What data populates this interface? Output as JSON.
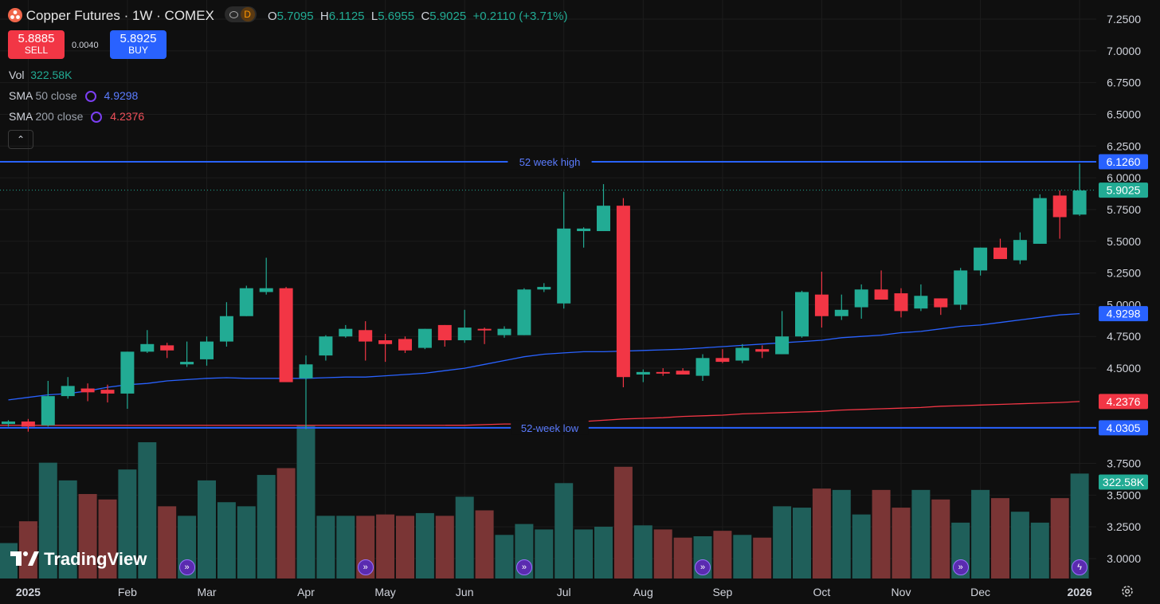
{
  "header": {
    "symbol_title": "Copper Futures · 1W · COMEX",
    "delay_badge": "D",
    "ohlc": {
      "o_label": "O",
      "o": "5.7095",
      "h_label": "H",
      "h": "6.1125",
      "l_label": "L",
      "l": "5.6955",
      "c_label": "C",
      "c": "5.9025",
      "change": "+0.2110 (+3.71%)"
    }
  },
  "trade": {
    "sell_price": "5.8885",
    "sell_label": "SELL",
    "spread": "0.0040",
    "buy_price": "5.8925",
    "buy_label": "BUY"
  },
  "indicators": {
    "vol_label": "Vol",
    "vol_value": "322.58K",
    "sma50_label": "SMA",
    "sma50_params": "50 close",
    "sma50_value": "4.9298",
    "sma200_label": "SMA",
    "sma200_params": "200 close",
    "sma200_value": "4.2376"
  },
  "collapse_icon": "chevron-up-icon",
  "brand": "TradingView",
  "settings_icon": "gear-icon",
  "colors": {
    "up": "#22ab94",
    "down": "#f23645",
    "sma50": "#2962ff",
    "sma200": "#f23645",
    "hl_line": "#2962ff",
    "bg": "#0f0f0f",
    "vol_up": "#1f5f5a",
    "vol_down": "#7a3535"
  },
  "chart_data": {
    "type": "candlestick",
    "interval": "1W",
    "y_axis_ticks": [
      "7.2500",
      "7.0000",
      "6.7500",
      "6.5000",
      "6.2500",
      "6.0000",
      "5.7500",
      "5.5000",
      "5.2500",
      "5.0000",
      "4.7500",
      "4.5000",
      "3.7500",
      "3.5000",
      "3.2500",
      "3.0000"
    ],
    "y_range": [
      2.85,
      7.35
    ],
    "x_axis_labels": [
      "2025",
      "Feb",
      "Mar",
      "Apr",
      "May",
      "Jun",
      "Jul",
      "Aug",
      "Sep",
      "Oct",
      "Nov",
      "Dec",
      "2026"
    ],
    "x_axis_label_week_index": [
      1,
      6,
      10,
      15,
      19,
      23,
      28,
      32,
      36,
      41,
      45,
      49,
      54
    ],
    "candles": [
      {
        "o": 4.06,
        "h": 4.09,
        "l": 4.04,
        "c": 4.08
      },
      {
        "o": 4.08,
        "h": 4.1,
        "l": 4.0,
        "c": 4.04
      },
      {
        "o": 4.05,
        "h": 4.4,
        "l": 4.04,
        "c": 4.28
      },
      {
        "o": 4.28,
        "h": 4.43,
        "l": 4.26,
        "c": 4.36
      },
      {
        "o": 4.34,
        "h": 4.38,
        "l": 4.24,
        "c": 4.31
      },
      {
        "o": 4.33,
        "h": 4.37,
        "l": 4.23,
        "c": 4.3
      },
      {
        "o": 4.3,
        "h": 4.63,
        "l": 4.18,
        "c": 4.63
      },
      {
        "o": 4.63,
        "h": 4.8,
        "l": 4.62,
        "c": 4.69
      },
      {
        "o": 4.68,
        "h": 4.7,
        "l": 4.58,
        "c": 4.64
      },
      {
        "o": 4.53,
        "h": 4.71,
        "l": 4.51,
        "c": 4.55
      },
      {
        "o": 4.57,
        "h": 4.75,
        "l": 4.52,
        "c": 4.71
      },
      {
        "o": 4.71,
        "h": 5.02,
        "l": 4.67,
        "c": 4.91
      },
      {
        "o": 4.91,
        "h": 5.15,
        "l": 4.91,
        "c": 5.13
      },
      {
        "o": 5.1,
        "h": 5.37,
        "l": 5.08,
        "c": 5.13
      },
      {
        "o": 5.13,
        "h": 5.14,
        "l": 4.4,
        "c": 4.39
      },
      {
        "o": 4.42,
        "h": 4.6,
        "l": 4.02,
        "c": 4.53
      },
      {
        "o": 4.6,
        "h": 4.76,
        "l": 4.56,
        "c": 4.75
      },
      {
        "o": 4.75,
        "h": 4.84,
        "l": 4.74,
        "c": 4.81
      },
      {
        "o": 4.8,
        "h": 4.87,
        "l": 4.56,
        "c": 4.71
      },
      {
        "o": 4.72,
        "h": 4.77,
        "l": 4.55,
        "c": 4.69
      },
      {
        "o": 4.73,
        "h": 4.75,
        "l": 4.62,
        "c": 4.64
      },
      {
        "o": 4.66,
        "h": 4.81,
        "l": 4.65,
        "c": 4.81
      },
      {
        "o": 4.84,
        "h": 4.84,
        "l": 4.67,
        "c": 4.72
      },
      {
        "o": 4.72,
        "h": 4.96,
        "l": 4.7,
        "c": 4.82
      },
      {
        "o": 4.81,
        "h": 4.82,
        "l": 4.69,
        "c": 4.8
      },
      {
        "o": 4.76,
        "h": 4.83,
        "l": 4.74,
        "c": 4.81
      },
      {
        "o": 4.76,
        "h": 5.13,
        "l": 4.76,
        "c": 5.12
      },
      {
        "o": 5.12,
        "h": 5.17,
        "l": 5.1,
        "c": 5.14
      },
      {
        "o": 5.01,
        "h": 5.89,
        "l": 4.97,
        "c": 5.6
      },
      {
        "o": 5.58,
        "h": 5.61,
        "l": 5.45,
        "c": 5.6
      },
      {
        "o": 5.58,
        "h": 5.95,
        "l": 5.58,
        "c": 5.78
      },
      {
        "o": 5.78,
        "h": 5.84,
        "l": 4.35,
        "c": 4.43
      },
      {
        "o": 4.45,
        "h": 4.49,
        "l": 4.39,
        "c": 4.47
      },
      {
        "o": 4.47,
        "h": 4.5,
        "l": 4.44,
        "c": 4.46
      },
      {
        "o": 4.48,
        "h": 4.5,
        "l": 4.45,
        "c": 4.45
      },
      {
        "o": 4.44,
        "h": 4.61,
        "l": 4.4,
        "c": 4.58
      },
      {
        "o": 4.58,
        "h": 4.65,
        "l": 4.54,
        "c": 4.55
      },
      {
        "o": 4.56,
        "h": 4.69,
        "l": 4.54,
        "c": 4.66
      },
      {
        "o": 4.65,
        "h": 4.68,
        "l": 4.58,
        "c": 4.63
      },
      {
        "o": 4.61,
        "h": 4.95,
        "l": 4.61,
        "c": 4.75
      },
      {
        "o": 4.75,
        "h": 5.11,
        "l": 4.74,
        "c": 5.1
      },
      {
        "o": 5.08,
        "h": 5.26,
        "l": 4.82,
        "c": 4.91
      },
      {
        "o": 4.91,
        "h": 5.08,
        "l": 4.88,
        "c": 4.96
      },
      {
        "o": 4.98,
        "h": 5.16,
        "l": 4.89,
        "c": 5.12
      },
      {
        "o": 5.12,
        "h": 5.27,
        "l": 5.05,
        "c": 5.04
      },
      {
        "o": 5.09,
        "h": 5.13,
        "l": 4.9,
        "c": 4.95
      },
      {
        "o": 4.97,
        "h": 5.16,
        "l": 4.95,
        "c": 5.07
      },
      {
        "o": 5.05,
        "h": 5.05,
        "l": 4.92,
        "c": 4.98
      },
      {
        "o": 5.0,
        "h": 5.29,
        "l": 4.96,
        "c": 5.27
      },
      {
        "o": 5.27,
        "h": 5.45,
        "l": 5.23,
        "c": 5.45
      },
      {
        "o": 5.45,
        "h": 5.52,
        "l": 5.37,
        "c": 5.36
      },
      {
        "o": 5.35,
        "h": 5.57,
        "l": 5.32,
        "c": 5.51
      },
      {
        "o": 5.48,
        "h": 5.87,
        "l": 5.48,
        "c": 5.84
      },
      {
        "o": 5.86,
        "h": 5.9,
        "l": 5.52,
        "c": 5.69
      },
      {
        "o": 5.71,
        "h": 6.11,
        "l": 5.7,
        "c": 5.9
      }
    ],
    "volume_pct": [
      0.26,
      0.42,
      0.85,
      0.72,
      0.62,
      0.58,
      0.8,
      1.0,
      0.53,
      0.46,
      0.72,
      0.56,
      0.53,
      0.76,
      0.81,
      1.12,
      0.46,
      0.46,
      0.46,
      0.47,
      0.46,
      0.48,
      0.46,
      0.6,
      0.5,
      0.32,
      0.4,
      0.36,
      0.7,
      0.36,
      0.38,
      0.82,
      0.39,
      0.36,
      0.3,
      0.31,
      0.35,
      0.32,
      0.3,
      0.53,
      0.52,
      0.66,
      0.65,
      0.47,
      0.65,
      0.52,
      0.65,
      0.58,
      0.41,
      0.65,
      0.59,
      0.49,
      0.41,
      0.59,
      0.77
    ],
    "sma50": [
      4.25,
      4.27,
      4.29,
      4.3,
      4.32,
      4.35,
      4.37,
      4.38,
      4.4,
      4.41,
      4.42,
      4.425,
      4.42,
      4.42,
      4.42,
      4.42,
      4.425,
      4.43,
      4.43,
      4.44,
      4.45,
      4.46,
      4.48,
      4.5,
      4.53,
      4.56,
      4.59,
      4.61,
      4.62,
      4.63,
      4.63,
      4.635,
      4.64,
      4.645,
      4.65,
      4.66,
      4.67,
      4.68,
      4.69,
      4.7,
      4.71,
      4.72,
      4.74,
      4.75,
      4.76,
      4.78,
      4.79,
      4.81,
      4.83,
      4.84,
      4.86,
      4.88,
      4.9,
      4.92,
      4.93
    ],
    "sma200": [
      4.05,
      4.05,
      4.055,
      4.06,
      4.06,
      4.065,
      4.07,
      4.08,
      4.09,
      4.1,
      4.105,
      4.11,
      4.12,
      4.125,
      4.13,
      4.14,
      4.145,
      4.15,
      4.155,
      4.16,
      4.17,
      4.175,
      4.18,
      4.185,
      4.19,
      4.2,
      4.205,
      4.21,
      4.215,
      4.22,
      4.225,
      4.23,
      4.2376
    ],
    "labels_right": {
      "high52": "6.1260",
      "last": "5.9025",
      "sma50": "4.9298",
      "sma200": "4.2376",
      "low52": "4.0305",
      "vol": "322.58K"
    },
    "high52_value": 6.126,
    "low52_value": 4.0305,
    "high52_label": "52 week high",
    "low52_label": "52-week low",
    "last_value": 5.9025,
    "event_week_indexes": [
      9,
      18,
      26,
      35,
      48
    ],
    "event_last_index": 54
  }
}
